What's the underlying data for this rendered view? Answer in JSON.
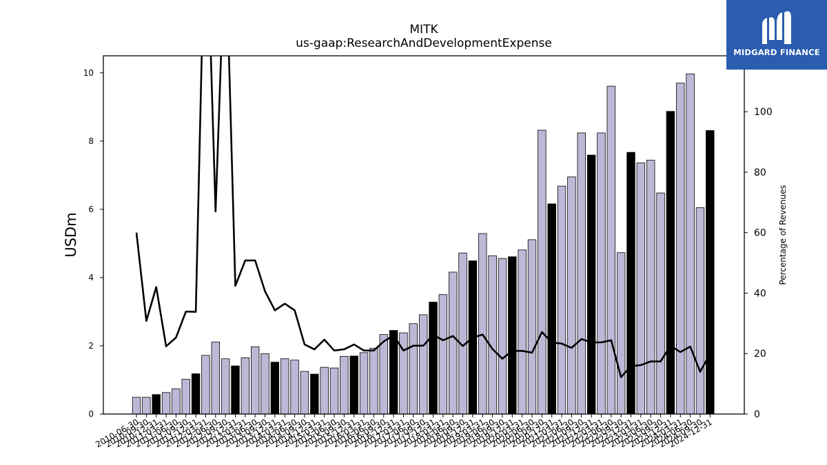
{
  "logo": {
    "text": "MIDGARD FINANCE"
  },
  "chart_data": {
    "type": "bar",
    "title": "MITK",
    "subtitle": "us-gaap:ResearchAndDevelopmentExpense",
    "ylabel": "USDm",
    "ylabel_right": "Percentage of Revenues",
    "ylim": [
      0,
      10.5
    ],
    "ylim_right": [
      0,
      118.5
    ],
    "yticks": [
      0,
      2,
      4,
      6,
      8,
      10
    ],
    "yticks_right": [
      0,
      20,
      40,
      60,
      80,
      100
    ],
    "colors": {
      "bar": "#bcb8d6",
      "bar_highlight": "#000000",
      "line": "#000000"
    },
    "categories": [
      "2010-06-30",
      "2010-09-30",
      "2010-12-31",
      "2011-03-31",
      "2011-06-30",
      "2011-09-30",
      "2011-12-31",
      "2012-03-31",
      "2012-06-30",
      "2012-09-30",
      "2012-12-31",
      "2013-03-31",
      "2013-06-30",
      "2013-09-30",
      "2013-12-31",
      "2014-03-31",
      "2014-06-30",
      "2014-09-30",
      "2014-12-31",
      "2015-03-31",
      "2015-06-30",
      "2015-09-30",
      "2015-12-31",
      "2016-03-31",
      "2016-06-30",
      "2016-09-30",
      "2016-12-31",
      "2017-03-31",
      "2017-06-30",
      "2017-09-30",
      "2017-12-31",
      "2018-03-31",
      "2018-06-30",
      "2018-09-30",
      "2018-12-31",
      "2019-03-31",
      "2019-06-30",
      "2019-09-30",
      "2019-12-31",
      "2020-03-31",
      "2020-06-30",
      "2020-09-30",
      "2020-12-31",
      "2021-03-31",
      "2021-06-30",
      "2021-09-30",
      "2021-12-31",
      "2022-03-31",
      "2022-06-30",
      "2022-09-30",
      "2022-12-31",
      "2023-03-31",
      "2023-06-30",
      "2023-09-30",
      "2023-12-31",
      "2024-03-31",
      "2024-06-30",
      "2024-09-30",
      "2024-12-31"
    ],
    "tick_labels": [
      "2010-06-30",
      "2010-09-30",
      "2010-12-31",
      "2011-03-31",
      "2011-06-30",
      "2011-09-30",
      "2011-12-31",
      "2012-03-31",
      "2012-06-30",
      "2012-09-30",
      "2012-12-31",
      "2013-03-31",
      "2013-06-30",
      "2013-09-30",
      "2013-12-31",
      "2014-03-31",
      "2014-06-30",
      "2014-09-30",
      "2014-12-31",
      "2015-03-31",
      "2015-06-30",
      "2015-09-30",
      "2015-12-31",
      "2016-03-31",
      "2016-06-30",
      "2016-09-30",
      "2016-12-31",
      "2017-03-31",
      "2017-06-30",
      "2017-09-30",
      "2017-12-31",
      "2018-03-31",
      "2018-06-30",
      "2018-09-30",
      "2018-12-31",
      "2019-03-31",
      "2019-06-30",
      "2019-09-30",
      "2019-12-31",
      "2020-03-31",
      "2020-06-30",
      "2020-09-30",
      "2020-12-31",
      "2021-03-31",
      "2021-06-30",
      "2021-09-30",
      "2021-12-31",
      "2022-03-31",
      "2022-06-30",
      "2022-09-30",
      "2022-12-31",
      "2023-03-31",
      "2023-06-30",
      "2023-09-30",
      "2023-12-31",
      "2024-03-31",
      "2024-06-30",
      "2024-09-30",
      "2024-12-31"
    ],
    "values": [
      0.49,
      0.49,
      0.57,
      0.63,
      0.74,
      1.02,
      1.18,
      1.72,
      2.11,
      1.62,
      1.41,
      1.65,
      1.97,
      1.77,
      1.52,
      1.62,
      1.58,
      1.25,
      1.17,
      1.37,
      1.35,
      1.69,
      1.7,
      1.8,
      1.93,
      2.33,
      2.45,
      2.38,
      2.65,
      2.91,
      3.28,
      3.5,
      4.16,
      4.72,
      4.49,
      5.29,
      4.64,
      4.56,
      4.61,
      4.81,
      5.11,
      8.32,
      6.16,
      6.68,
      6.95,
      8.24,
      7.59,
      8.24,
      9.61,
      4.73,
      7.67,
      7.36,
      7.44,
      6.48,
      8.87,
      9.7,
      9.97,
      6.05,
      8.31
    ],
    "highlight": [
      false,
      false,
      true,
      false,
      false,
      false,
      true,
      false,
      false,
      false,
      true,
      false,
      false,
      false,
      true,
      false,
      false,
      false,
      true,
      false,
      false,
      false,
      true,
      false,
      false,
      false,
      true,
      false,
      false,
      false,
      true,
      false,
      false,
      false,
      true,
      false,
      false,
      false,
      true,
      false,
      false,
      false,
      true,
      false,
      false,
      false,
      true,
      false,
      false,
      false,
      true,
      false,
      false,
      false,
      true,
      false,
      false,
      false,
      true
    ],
    "pct_of_revenues": [
      60,
      30.8,
      42,
      22.4,
      25.3,
      33.9,
      33.8,
      175,
      67,
      160,
      42.4,
      50.8,
      50.8,
      40.6,
      34.3,
      36.5,
      34.3,
      23,
      21.4,
      24.6,
      21,
      21.4,
      23,
      21,
      21,
      24,
      26,
      21,
      22.6,
      22.6,
      26.2,
      24.4,
      25.8,
      22.5,
      25.3,
      26.3,
      21.5,
      18.3,
      20.9,
      20.9,
      20.3,
      27.1,
      23.7,
      23.3,
      21.9,
      24.8,
      23.7,
      23.7,
      24.4,
      12.2,
      15.8,
      16.2,
      17.4,
      17.4,
      22.6,
      20.5,
      22.3,
      14,
      19.9
    ]
  }
}
